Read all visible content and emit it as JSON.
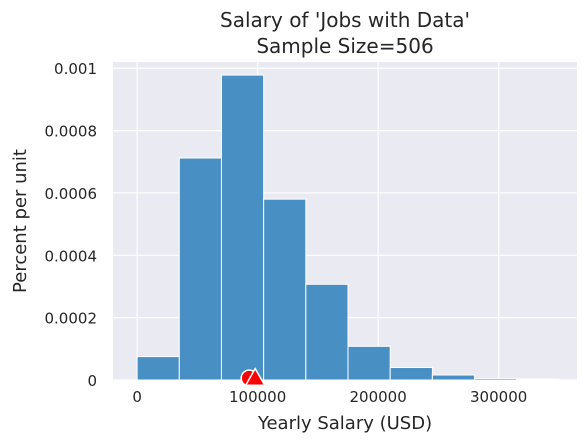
{
  "chart_data": {
    "type": "bar",
    "title_lines": [
      "Salary of 'Jobs with Data'",
      "Sample Size=506"
    ],
    "xlabel": "Yearly Salary (USD)",
    "ylabel": "Percent per unit",
    "xlim": [
      -20000,
      365000
    ],
    "ylim": [
      0,
      0.00102
    ],
    "xticks": [
      0,
      100000,
      200000,
      300000
    ],
    "xtick_labels": [
      "0",
      "100000",
      "200000",
      "300000"
    ],
    "yticks": [
      0,
      0.0002,
      0.0004,
      0.0006,
      0.0008,
      0.001
    ],
    "ytick_labels": [
      "0",
      "0.0002",
      "0.0004",
      "0.0006",
      "0.0008",
      "0.001"
    ],
    "grid": true,
    "bin_edges": [
      0,
      35000,
      70000,
      105000,
      140000,
      175000,
      210000,
      245000,
      280000,
      315000,
      350000
    ],
    "values": [
      7.5e-05,
      0.000712,
      0.000978,
      0.00058,
      0.000307,
      0.000108,
      4e-05,
      1.6e-05,
      5e-06,
      3e-06
    ],
    "markers": [
      {
        "shape": "circle",
        "x": 93000,
        "y": 3e-06
      },
      {
        "shape": "triangle",
        "x": 98000,
        "y": 3e-06
      }
    ],
    "colors": {
      "bar": "#3a87c0",
      "bar_edge": "#ffffff",
      "background": "#eaeaf2",
      "grid": "#ffffff",
      "marker": "#ff0000"
    }
  }
}
